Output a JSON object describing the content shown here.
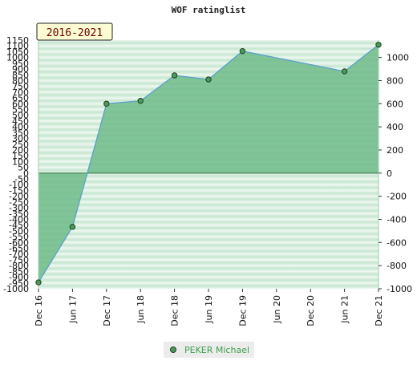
{
  "page_title": "WOF ratinglist",
  "chart_data": {
    "type": "area",
    "title": "WOF ratinglist",
    "period_label": "2016-2021",
    "x": [
      "Dec 16",
      "Jun 17",
      "Dec 17",
      "Jun 18",
      "Dec 18",
      "Jun 19",
      "Dec 19",
      "Jun 21",
      "Dec 21"
    ],
    "series": [
      {
        "name": "PEKER Michael",
        "values": [
          -945,
          -465,
          600,
          625,
          845,
          810,
          1055,
          880,
          1110
        ]
      }
    ],
    "x_tick_labels": [
      "Dec 16",
      "Jun 17",
      "Dec 17",
      "Jun 18",
      "Dec 18",
      "Jun 19",
      "Dec 19",
      "Jun 20",
      "Dec 20",
      "Jun 21",
      "Dec 21"
    ],
    "y_left_ticks": [
      1150,
      1100,
      1050,
      1000,
      950,
      900,
      850,
      800,
      750,
      700,
      650,
      600,
      550,
      500,
      450,
      400,
      350,
      300,
      250,
      200,
      150,
      100,
      50,
      0,
      -50,
      -100,
      -150,
      -200,
      -250,
      -300,
      -350,
      -400,
      -450,
      -500,
      -550,
      -600,
      -650,
      -700,
      -750,
      -800,
      -850,
      -900,
      -950,
      -1000
    ],
    "y_right_ticks": [
      1000,
      800,
      600,
      400,
      200,
      0,
      -200,
      -400,
      -600,
      -800,
      -1000
    ],
    "ylim": [
      -1000,
      1150
    ],
    "grid": true,
    "legend_position": "bottom-center",
    "colors": {
      "line": "#5a9fd0",
      "area_fill": "#6fbb8a",
      "marker": "#4a9a5a",
      "marker_edge": "#1f3f1f",
      "band_light": "#eef8f1",
      "band_dark": "#c6e6d0",
      "badge_bg": "#fdfbd2",
      "legend_text": "#3fa14f"
    }
  },
  "legend": {
    "label": "PEKER Michael"
  }
}
